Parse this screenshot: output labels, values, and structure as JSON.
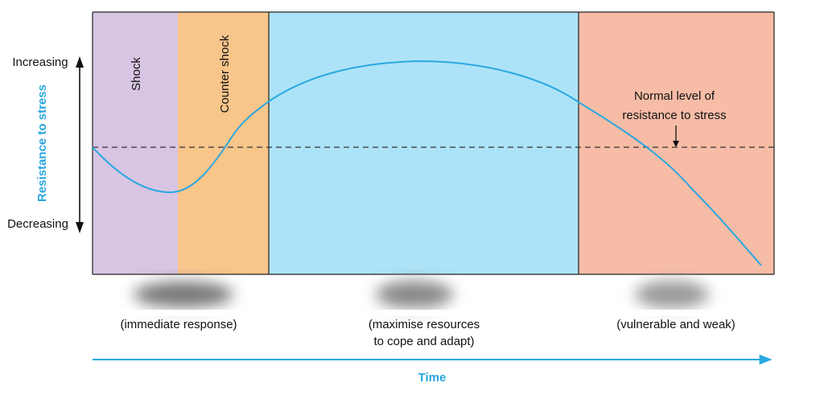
{
  "diagram": {
    "y_axis": {
      "title": "Resistance to stress",
      "top_label": "Increasing",
      "bottom_label": "Decreasing"
    },
    "x_axis": {
      "title": "Time"
    },
    "phases": [
      {
        "label": "Shock",
        "color": "#d7c5e3"
      },
      {
        "label": "Counter shock",
        "color": "#f8c58b"
      },
      {
        "label": "",
        "color": "#ade3f8"
      },
      {
        "label": "",
        "color": "#f7bca6"
      }
    ],
    "stage_captions": [
      "(immediate response)",
      "(maximise resources",
      "to cope and adapt)",
      "(vulnerable and weak)"
    ],
    "annotation": {
      "line1": "Normal level of",
      "line2": "resistance to stress"
    },
    "colors": {
      "curve": "#2aa8e0",
      "axis_title": "#29a6dd",
      "baseline": "#333333",
      "border": "#222222"
    }
  }
}
